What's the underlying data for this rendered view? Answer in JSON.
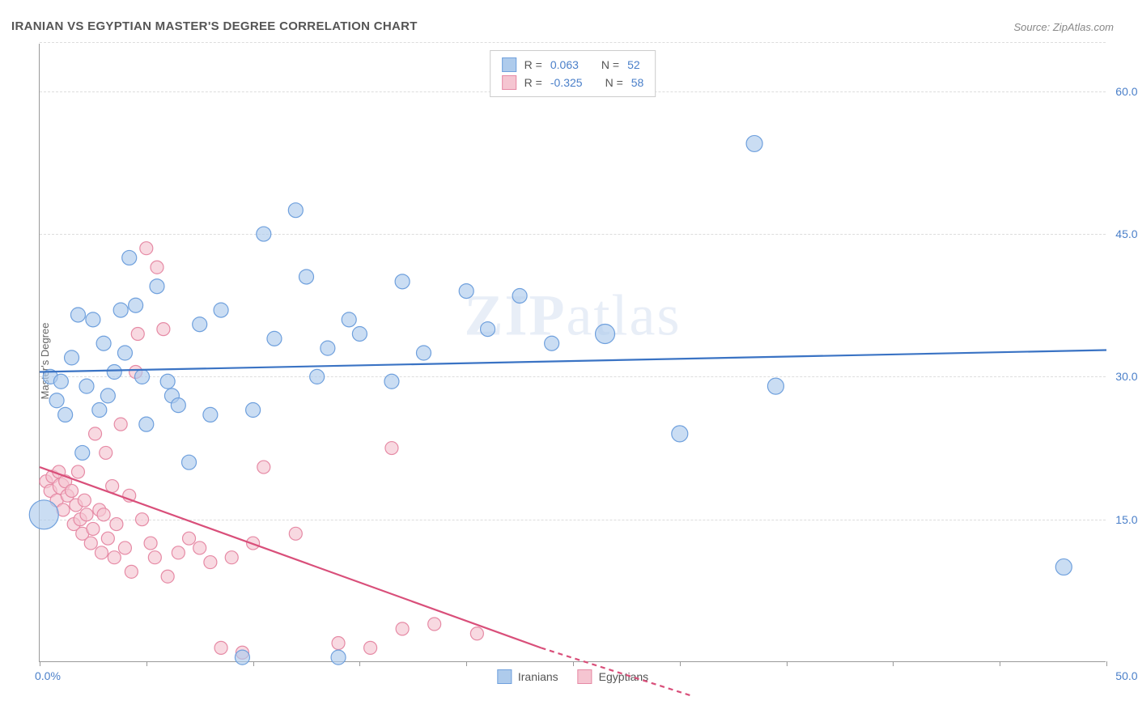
{
  "title": "IRANIAN VS EGYPTIAN MASTER'S DEGREE CORRELATION CHART",
  "source": "Source: ZipAtlas.com",
  "watermark": "ZIPatlas",
  "y_axis_label": "Master's Degree",
  "chart": {
    "type": "scatter",
    "xlim": [
      0,
      50
    ],
    "ylim": [
      0,
      65
    ],
    "x_ticks": [
      0,
      5,
      10,
      15,
      20,
      25,
      30,
      35,
      40,
      45,
      50
    ],
    "x_tick_labels": {
      "0": "0.0%",
      "50": "50.0%"
    },
    "y_gridlines": [
      15,
      30,
      45,
      60,
      65.2
    ],
    "y_tick_labels": {
      "15": "15.0%",
      "30": "30.0%",
      "45": "45.0%",
      "60": "60.0%"
    },
    "background_color": "#ffffff",
    "grid_color": "#dddddd",
    "axis_color": "#999999"
  },
  "series": {
    "iranians": {
      "label": "Iranians",
      "fill_color": "#aecbec",
      "stroke_color": "#6fa0dd",
      "line_color": "#3a73c4",
      "r_value": "0.063",
      "n_value": "52",
      "trend": {
        "x1": 0,
        "y1": 30.5,
        "x2": 50,
        "y2": 32.8
      },
      "marker_radius": 9,
      "points": [
        [
          0.2,
          15.5,
          18
        ],
        [
          0.5,
          30.0,
          9
        ],
        [
          0.8,
          27.5,
          9
        ],
        [
          1.0,
          29.5,
          9
        ],
        [
          1.2,
          26.0,
          9
        ],
        [
          1.5,
          32.0,
          9
        ],
        [
          1.8,
          36.5,
          9
        ],
        [
          2.0,
          22.0,
          9
        ],
        [
          2.2,
          29.0,
          9
        ],
        [
          2.5,
          36.0,
          9
        ],
        [
          2.8,
          26.5,
          9
        ],
        [
          3.0,
          33.5,
          9
        ],
        [
          3.2,
          28.0,
          9
        ],
        [
          3.5,
          30.5,
          9
        ],
        [
          3.8,
          37.0,
          9
        ],
        [
          4.0,
          32.5,
          9
        ],
        [
          4.2,
          42.5,
          9
        ],
        [
          4.5,
          37.5,
          9
        ],
        [
          4.8,
          30.0,
          9
        ],
        [
          5.0,
          25.0,
          9
        ],
        [
          5.5,
          39.5,
          9
        ],
        [
          6.0,
          29.5,
          9
        ],
        [
          6.2,
          28.0,
          9
        ],
        [
          6.5,
          27.0,
          9
        ],
        [
          7.0,
          21.0,
          9
        ],
        [
          7.5,
          35.5,
          9
        ],
        [
          8.0,
          26.0,
          9
        ],
        [
          8.5,
          37.0,
          9
        ],
        [
          9.5,
          0.5,
          9
        ],
        [
          10.0,
          26.5,
          9
        ],
        [
          10.5,
          45.0,
          9
        ],
        [
          11.0,
          34.0,
          9
        ],
        [
          12.0,
          47.5,
          9
        ],
        [
          12.5,
          40.5,
          9
        ],
        [
          13.0,
          30.0,
          9
        ],
        [
          13.5,
          33.0,
          9
        ],
        [
          14.0,
          0.5,
          9
        ],
        [
          14.5,
          36.0,
          9
        ],
        [
          15.0,
          34.5,
          9
        ],
        [
          16.5,
          29.5,
          9
        ],
        [
          17.0,
          40.0,
          9
        ],
        [
          18.0,
          32.5,
          9
        ],
        [
          20.0,
          39.0,
          9
        ],
        [
          21.0,
          35.0,
          9
        ],
        [
          22.5,
          38.5,
          9
        ],
        [
          24.0,
          33.5,
          9
        ],
        [
          26.5,
          34.5,
          12
        ],
        [
          30.0,
          24.0,
          10
        ],
        [
          33.5,
          54.5,
          10
        ],
        [
          34.5,
          29.0,
          10
        ],
        [
          48.0,
          10.0,
          10
        ]
      ]
    },
    "egyptians": {
      "label": "Egyptians",
      "fill_color": "#f5c5d1",
      "stroke_color": "#e68aa5",
      "line_color": "#d94f7a",
      "r_value": "-0.325",
      "n_value": "58",
      "trend_solid": {
        "x1": 0,
        "y1": 20.5,
        "x2": 23.5,
        "y2": 1.5
      },
      "trend_dashed": {
        "x1": 23.5,
        "y1": 1.5,
        "x2": 30.5,
        "y2": -3.5
      },
      "marker_radius": 8,
      "points": [
        [
          0.3,
          19.0,
          8
        ],
        [
          0.5,
          18.0,
          8
        ],
        [
          0.6,
          19.5,
          8
        ],
        [
          0.8,
          17.0,
          8
        ],
        [
          0.9,
          20.0,
          8
        ],
        [
          1.0,
          18.5,
          10
        ],
        [
          1.1,
          16.0,
          8
        ],
        [
          1.2,
          19.0,
          8
        ],
        [
          1.3,
          17.5,
          8
        ],
        [
          1.5,
          18.0,
          8
        ],
        [
          1.6,
          14.5,
          8
        ],
        [
          1.7,
          16.5,
          8
        ],
        [
          1.8,
          20.0,
          8
        ],
        [
          1.9,
          15.0,
          8
        ],
        [
          2.0,
          13.5,
          8
        ],
        [
          2.1,
          17.0,
          8
        ],
        [
          2.2,
          15.5,
          8
        ],
        [
          2.4,
          12.5,
          8
        ],
        [
          2.5,
          14.0,
          8
        ],
        [
          2.6,
          24.0,
          8
        ],
        [
          2.8,
          16.0,
          8
        ],
        [
          2.9,
          11.5,
          8
        ],
        [
          3.0,
          15.5,
          8
        ],
        [
          3.1,
          22.0,
          8
        ],
        [
          3.2,
          13.0,
          8
        ],
        [
          3.4,
          18.5,
          8
        ],
        [
          3.5,
          11.0,
          8
        ],
        [
          3.6,
          14.5,
          8
        ],
        [
          3.8,
          25.0,
          8
        ],
        [
          4.0,
          12.0,
          8
        ],
        [
          4.2,
          17.5,
          8
        ],
        [
          4.3,
          9.5,
          8
        ],
        [
          4.5,
          30.5,
          8
        ],
        [
          4.6,
          34.5,
          8
        ],
        [
          4.8,
          15.0,
          8
        ],
        [
          5.0,
          43.5,
          8
        ],
        [
          5.2,
          12.5,
          8
        ],
        [
          5.4,
          11.0,
          8
        ],
        [
          5.5,
          41.5,
          8
        ],
        [
          5.8,
          35.0,
          8
        ],
        [
          6.0,
          9.0,
          8
        ],
        [
          6.5,
          11.5,
          8
        ],
        [
          7.0,
          13.0,
          8
        ],
        [
          7.5,
          12.0,
          8
        ],
        [
          8.0,
          10.5,
          8
        ],
        [
          8.5,
          1.5,
          8
        ],
        [
          9.0,
          11.0,
          8
        ],
        [
          9.5,
          1.0,
          8
        ],
        [
          10.0,
          12.5,
          8
        ],
        [
          10.5,
          20.5,
          8
        ],
        [
          12.0,
          13.5,
          8
        ],
        [
          14.0,
          2.0,
          8
        ],
        [
          15.5,
          1.5,
          8
        ],
        [
          16.5,
          22.5,
          8
        ],
        [
          17.0,
          3.5,
          8
        ],
        [
          18.5,
          4.0,
          8
        ],
        [
          20.5,
          3.0,
          8
        ]
      ]
    }
  },
  "legend_top": {
    "r_label": "R =",
    "n_label": "N ="
  },
  "colors": {
    "tick_text": "#4a7fc9",
    "title_text": "#555555"
  }
}
